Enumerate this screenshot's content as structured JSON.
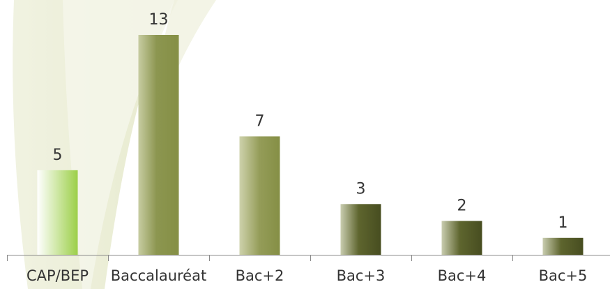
{
  "chart_data": {
    "type": "bar",
    "categories": [
      "CAP/BEP",
      "Baccalauréat",
      "Bac+2",
      "Bac+3",
      "Bac+4",
      "Bac+5"
    ],
    "values": [
      5,
      13,
      7,
      3,
      2,
      1
    ],
    "data_labels": [
      "5",
      "13",
      "7",
      "3",
      "2",
      "1"
    ],
    "title": "",
    "xlabel": "",
    "ylabel": "",
    "ylim": [
      0,
      13
    ],
    "grid": false,
    "legend": "none",
    "bar_colors": [
      "#9ccf48",
      "#8a944a",
      "#8a944a",
      "#4c5223",
      "#4c5223",
      "#4c5223"
    ]
  }
}
